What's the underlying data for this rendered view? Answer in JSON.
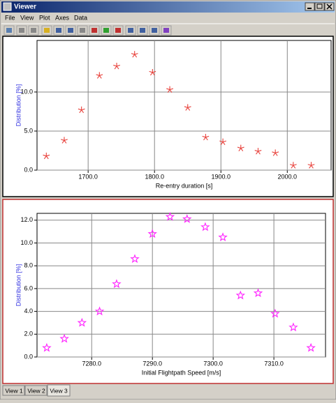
{
  "window": {
    "title": "Viewer",
    "menu": [
      "File",
      "View",
      "Plot",
      "Axes",
      "Data"
    ],
    "tabs": [
      "View 1",
      "View 2",
      "View 3"
    ]
  },
  "chart_data": [
    {
      "type": "scatter",
      "marker": "asterisk",
      "color": "#e8403a",
      "grid": true,
      "xlabel": "Re-entry duration [s]",
      "ylabel": "Distribution [%]",
      "x": [
        1637,
        1664,
        1690,
        1717,
        1743,
        1770,
        1797,
        1823,
        1850,
        1877,
        1903,
        1930,
        1956,
        1982,
        2009,
        2036
      ],
      "values": [
        1.8,
        3.8,
        7.7,
        12.1,
        13.3,
        14.8,
        12.5,
        10.3,
        8.0,
        4.2,
        3.6,
        2.8,
        2.4,
        2.2,
        0.6,
        0.6
      ],
      "xlim": [
        1623,
        2066
      ],
      "ylim": [
        0,
        16.6
      ],
      "xticks": [
        {
          "value": 1700,
          "label": "1700.0"
        },
        {
          "value": 1800,
          "label": "1800.0"
        },
        {
          "value": 1900,
          "label": "1900.0"
        },
        {
          "value": 2000,
          "label": "2000.0"
        }
      ],
      "yticks": [
        {
          "value": 0,
          "label": "0.0"
        },
        {
          "value": 5,
          "label": "5.0"
        },
        {
          "value": 10,
          "label": "10.0"
        }
      ]
    },
    {
      "type": "scatter",
      "marker": "star",
      "color": "#ff22ff",
      "grid": true,
      "xlabel": "Initial Flightpath Speed [m/s]",
      "ylabel": "Distribution [%]",
      "x": [
        7272.6,
        7275.5,
        7278.4,
        7281.3,
        7284.1,
        7287.1,
        7290.0,
        7292.9,
        7295.7,
        7298.7,
        7301.6,
        7304.5,
        7307.4,
        7310.2,
        7313.2,
        7316.1
      ],
      "values": [
        0.8,
        1.6,
        3.0,
        4.0,
        6.4,
        8.6,
        10.8,
        12.3,
        12.1,
        11.4,
        10.5,
        5.4,
        5.6,
        3.8,
        2.6,
        0.8
      ],
      "xlim": [
        7271,
        7318.5
      ],
      "ylim": [
        0,
        12.6
      ],
      "xticks": [
        {
          "value": 7280,
          "label": "7280.0"
        },
        {
          "value": 7290,
          "label": "7290.0"
        },
        {
          "value": 7300,
          "label": "7300.0"
        },
        {
          "value": 7310,
          "label": "7310.0"
        }
      ],
      "yticks": [
        {
          "value": 0,
          "label": "0.0"
        },
        {
          "value": 2,
          "label": "2.0"
        },
        {
          "value": 4,
          "label": "4.0"
        },
        {
          "value": 6,
          "label": "6.0"
        },
        {
          "value": 8,
          "label": "8.0"
        },
        {
          "value": 10,
          "label": "10.0"
        },
        {
          "value": 12,
          "label": "12.0"
        }
      ]
    }
  ]
}
